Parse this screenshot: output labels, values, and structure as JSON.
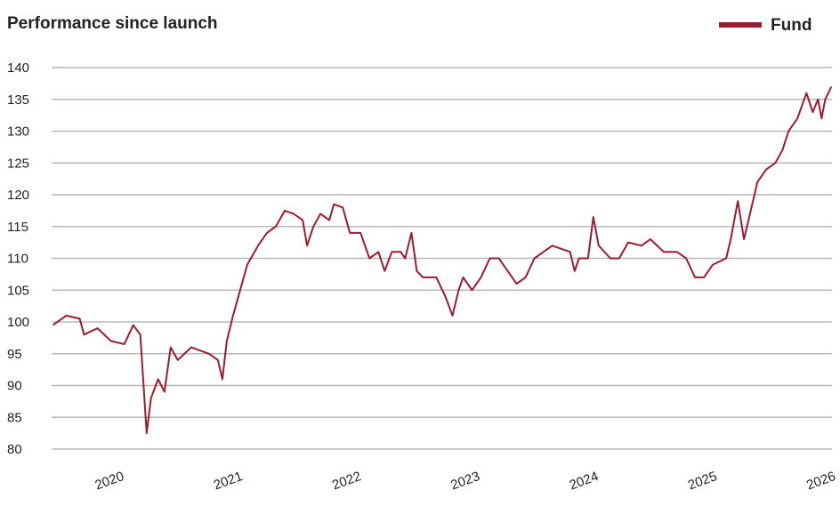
{
  "chart_data": {
    "type": "line",
    "title": "Performance since launch",
    "x": [
      2019.511,
      2019.624,
      2019.737,
      2019.774,
      2019.887,
      2020.0,
      2020.113,
      2020.188,
      2020.248,
      2020.301,
      2020.338,
      2020.398,
      2020.451,
      2020.504,
      2020.564,
      2020.677,
      2020.827,
      2020.902,
      2020.94,
      2020.977,
      2021.03,
      2021.09,
      2021.15,
      2021.241,
      2021.316,
      2021.391,
      2021.466,
      2021.541,
      2021.617,
      2021.654,
      2021.707,
      2021.767,
      2021.842,
      2021.88,
      2021.955,
      2022.015,
      2022.105,
      2022.18,
      2022.256,
      2022.308,
      2022.368,
      2022.444,
      2022.481,
      2022.534,
      2022.579,
      2022.632,
      2022.744,
      2022.82,
      2022.88,
      2022.932,
      2022.97,
      2023.045,
      2023.12,
      2023.195,
      2023.271,
      2023.346,
      2023.421,
      2023.496,
      2023.571,
      2023.647,
      2023.722,
      2023.797,
      2023.872,
      2023.91,
      2023.947,
      2024.023,
      2024.068,
      2024.113,
      2024.211,
      2024.286,
      2024.361,
      2024.474,
      2024.549,
      2024.662,
      2024.774,
      2024.85,
      2024.925,
      2025.0,
      2025.075,
      2025.188,
      2025.226,
      2025.286,
      2025.338,
      2025.376,
      2025.451,
      2025.526,
      2025.602,
      2025.662,
      2025.714,
      2025.789,
      2025.865,
      2025.917,
      2025.962,
      2025.992,
      2026.023,
      2026.075
    ],
    "series": [
      {
        "name": "Fund",
        "color": "#9b1c2e",
        "values": [
          99.5,
          101,
          100.5,
          98,
          99,
          97,
          96.5,
          99.5,
          98,
          82.5,
          88,
          91,
          89,
          96,
          94,
          96,
          95,
          94,
          91,
          97,
          101,
          105,
          109,
          112,
          114,
          115,
          117.5,
          117,
          116,
          112,
          115,
          117,
          116,
          118.5,
          118,
          114,
          114,
          110,
          111,
          108,
          111,
          111,
          110,
          114,
          108,
          107,
          107,
          104,
          101,
          105,
          107,
          105,
          107,
          110,
          110,
          108,
          106,
          107,
          110,
          111,
          112,
          111.5,
          111,
          108,
          110,
          110,
          116.5,
          112,
          110,
          110,
          112.5,
          112,
          113,
          111,
          111,
          110,
          107,
          107,
          109,
          110,
          113,
          119,
          113,
          116,
          122,
          124,
          125,
          127,
          130,
          132,
          136,
          133,
          135,
          132,
          135,
          137
        ]
      }
    ],
    "xlim": [
      2019.5,
      2026.08
    ],
    "xticks": [
      2020,
      2021,
      2022,
      2023,
      2024,
      2025,
      2026
    ],
    "ylim": [
      80,
      140
    ],
    "yticks": [
      80,
      85,
      90,
      95,
      100,
      105,
      110,
      115,
      120,
      125,
      130,
      135,
      140
    ],
    "grid": true,
    "legend": "top-right"
  }
}
